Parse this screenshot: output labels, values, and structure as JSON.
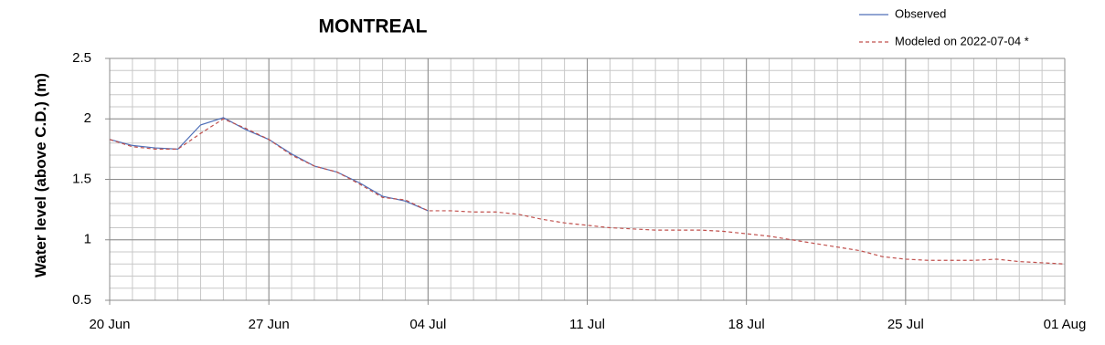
{
  "chart_data": {
    "type": "line",
    "title": "MONTREAL",
    "y_label": "Water level (above C.D.) (m)",
    "x": [
      0,
      1,
      2,
      3,
      4,
      5,
      6,
      7,
      8,
      9,
      10,
      11,
      12,
      13,
      14,
      15,
      16,
      17,
      18,
      19,
      20,
      21,
      22,
      23,
      24,
      25,
      26,
      27,
      28,
      29,
      30,
      31,
      32,
      33,
      34,
      35,
      36,
      37,
      38,
      39,
      40,
      41,
      42
    ],
    "series": [
      {
        "name": "Observed",
        "color": "#4f6fb8",
        "dash": false,
        "values": [
          1.83,
          1.78,
          1.76,
          1.75,
          1.95,
          2.01,
          1.91,
          1.83,
          1.71,
          1.61,
          1.56,
          1.47,
          1.36,
          1.32,
          1.24,
          null,
          null,
          null,
          null,
          null,
          null,
          null,
          null,
          null,
          null,
          null,
          null,
          null,
          null,
          null,
          null,
          null,
          null,
          null,
          null,
          null,
          null,
          null,
          null,
          null,
          null,
          null,
          null
        ]
      },
      {
        "name": "Modeled on 2022-07-04 *",
        "color": "#c0504d",
        "dash": true,
        "values": [
          1.83,
          1.77,
          1.75,
          1.75,
          1.88,
          2.0,
          1.92,
          1.83,
          1.7,
          1.61,
          1.56,
          1.46,
          1.35,
          1.33,
          1.24,
          1.24,
          1.23,
          1.23,
          1.21,
          1.17,
          1.14,
          1.12,
          1.1,
          1.09,
          1.08,
          1.08,
          1.08,
          1.07,
          1.05,
          1.03,
          1.0,
          0.97,
          0.94,
          0.91,
          0.86,
          0.84,
          0.83,
          0.83,
          0.83,
          0.84,
          0.82,
          0.81,
          0.8
        ]
      }
    ],
    "xlim": [
      0,
      42
    ],
    "xticks": [
      {
        "value": 0,
        "label": "20 Jun"
      },
      {
        "value": 7,
        "label": "27 Jun"
      },
      {
        "value": 14,
        "label": "04 Jul"
      },
      {
        "value": 21,
        "label": "11 Jul"
      },
      {
        "value": 28,
        "label": "18 Jul"
      },
      {
        "value": 35,
        "label": "25 Jul"
      },
      {
        "value": 42,
        "label": "01 Aug"
      }
    ],
    "ylim": [
      0.5,
      2.5
    ],
    "yticks": [
      0.5,
      1,
      1.5,
      2,
      2.5
    ],
    "grid": true,
    "minor_grid": {
      "x": 1,
      "y": 0.1
    },
    "legend": "top-right"
  }
}
